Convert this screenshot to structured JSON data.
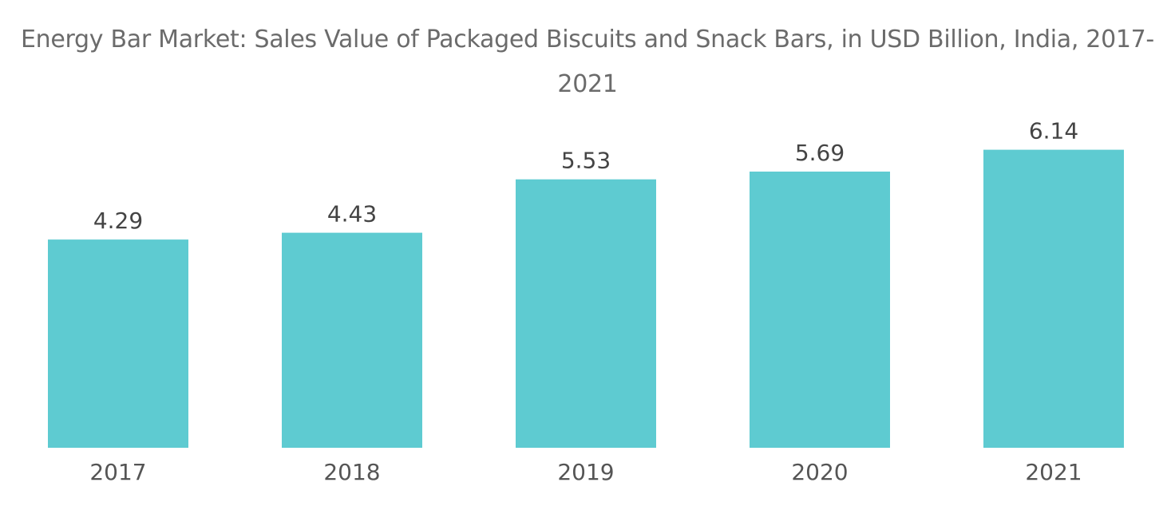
{
  "chart_data": {
    "type": "bar",
    "title": "Energy Bar Market: Sales Value of Packaged Biscuits and Snack Bars, in USD Billion, India, 2017-2021",
    "categories": [
      "2017",
      "2018",
      "2019",
      "2020",
      "2021"
    ],
    "values": [
      4.29,
      4.43,
      5.53,
      5.69,
      6.14
    ],
    "value_labels": [
      "4.29",
      "4.43",
      "5.53",
      "5.69",
      "6.14"
    ],
    "xlabel": "",
    "ylabel": "",
    "ylim": [
      0,
      8.6
    ],
    "grid": false,
    "legend": "none",
    "colors": {
      "bar": "#5ecbd1",
      "title": "#6b6b6b",
      "label": "#444444",
      "tick": "#555555"
    }
  }
}
